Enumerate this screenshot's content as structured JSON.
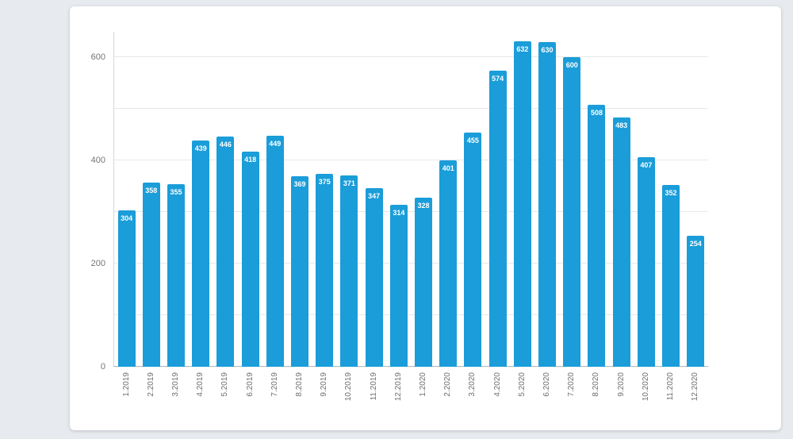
{
  "page": {
    "background": "#e7eaee"
  },
  "chart_data": {
    "type": "bar",
    "title": "",
    "xlabel": "",
    "ylabel": "",
    "legend": "none",
    "grid": "on",
    "bar_color": "#1a9dd9",
    "value_label_color": "#ffffff",
    "ylim": [
      0,
      650
    ],
    "yticks": [
      0,
      200,
      400,
      600
    ],
    "gridlines": [
      100,
      200,
      300,
      400,
      500,
      600
    ],
    "categories": [
      "1.2019",
      "2.2019",
      "3.2019",
      "4.2019",
      "5.2019",
      "6.2019",
      "7.2019",
      "8.2019",
      "9.2019",
      "10.2019",
      "11.2019",
      "12.2019",
      "1.2020",
      "2.2020",
      "3.2020",
      "4.2020",
      "5.2020",
      "6.2020",
      "7.2020",
      "8.2020",
      "9.2020",
      "10.2020",
      "11.2020",
      "12.2020"
    ],
    "values": [
      304,
      358,
      355,
      439,
      446,
      418,
      449,
      369,
      375,
      371,
      347,
      314,
      328,
      401,
      455,
      574,
      632,
      630,
      600,
      508,
      483,
      407,
      352,
      254
    ]
  }
}
